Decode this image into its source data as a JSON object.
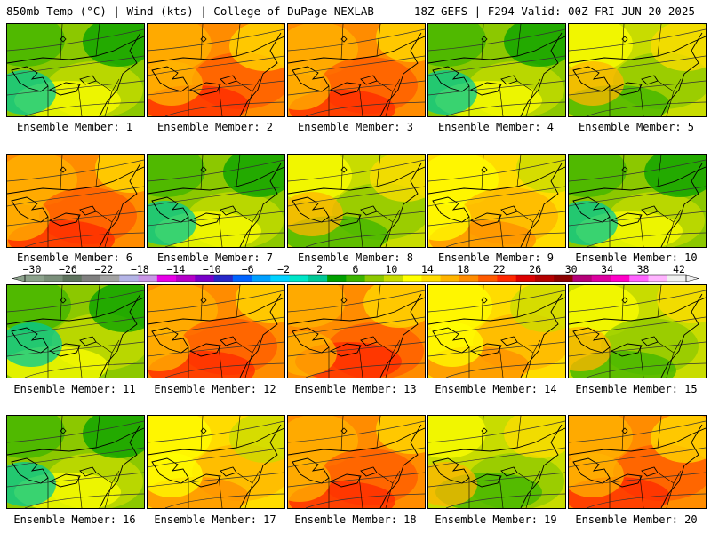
{
  "header": {
    "left": "850mb Temp (°C) | Wind (kts) | College of DuPage NEXLAB",
    "right": "18Z GEFS | F294 Valid: 00Z FRI JUN 20 2025"
  },
  "caption_prefix": "Ensemble Member: ",
  "members": [
    {
      "label": "Ensemble Member: 1",
      "scheme": "cool"
    },
    {
      "label": "Ensemble Member: 2",
      "scheme": "hot"
    },
    {
      "label": "Ensemble Member: 3",
      "scheme": "hot"
    },
    {
      "label": "Ensemble Member: 4",
      "scheme": "cool"
    },
    {
      "label": "Ensemble Member: 5",
      "scheme": "mild"
    },
    {
      "label": "Ensemble Member: 6",
      "scheme": "hot"
    },
    {
      "label": "Ensemble Member: 7",
      "scheme": "cool"
    },
    {
      "label": "Ensemble Member: 8",
      "scheme": "mild"
    },
    {
      "label": "Ensemble Member: 9",
      "scheme": "warm"
    },
    {
      "label": "Ensemble Member: 10",
      "scheme": "cool"
    },
    {
      "label": "Ensemble Member: 11",
      "scheme": "cool"
    },
    {
      "label": "Ensemble Member: 12",
      "scheme": "hot"
    },
    {
      "label": "Ensemble Member: 13",
      "scheme": "hot"
    },
    {
      "label": "Ensemble Member: 14",
      "scheme": "warm"
    },
    {
      "label": "Ensemble Member: 15",
      "scheme": "mild"
    },
    {
      "label": "Ensemble Member: 16",
      "scheme": "cool"
    },
    {
      "label": "Ensemble Member: 17",
      "scheme": "warm"
    },
    {
      "label": "Ensemble Member: 18",
      "scheme": "hot"
    },
    {
      "label": "Ensemble Member: 19",
      "scheme": "mild"
    },
    {
      "label": "Ensemble Member: 20",
      "scheme": "hot"
    }
  ],
  "colorbar": {
    "tick_labels": [
      "−30",
      "−26",
      "−22",
      "−18",
      "−14",
      "−10",
      "−6",
      "−2",
      "2",
      "6",
      "10",
      "14",
      "18",
      "22",
      "26",
      "30",
      "34",
      "38",
      "42"
    ],
    "colors": [
      "#8ca28c",
      "#7a8f7a",
      "#5e735e",
      "#7f7f7f",
      "#a3a3a3",
      "#b4b4e6",
      "#c896e6",
      "#e600e6",
      "#b400c8",
      "#7800c8",
      "#2828c8",
      "#0064ff",
      "#00a0ff",
      "#00d2ff",
      "#00e6c8",
      "#00c896",
      "#00a000",
      "#3cb400",
      "#8cc800",
      "#c8dc00",
      "#ffff00",
      "#ffdc00",
      "#ffb400",
      "#ff8c00",
      "#ff5a00",
      "#ff2800",
      "#dc0000",
      "#b40000",
      "#8c0000",
      "#b40078",
      "#dc00a0",
      "#ff00c8",
      "#ff64ff",
      "#ffb4ff",
      "#f0f0f0"
    ]
  },
  "schemes": {
    "hot": {
      "base": "#ff8c00",
      "blobs": [
        "#ffb400",
        "#ff5a00",
        "#ffdc00",
        "#ff2800",
        "#ffb400"
      ]
    },
    "warm": {
      "base": "#ffdc00",
      "blobs": [
        "#ffff00",
        "#ffb400",
        "#c8dc00",
        "#ff8c00",
        "#ffff00"
      ]
    },
    "mild": {
      "base": "#c8dc00",
      "blobs": [
        "#ffff00",
        "#8cc800",
        "#ffdc00",
        "#3cb400",
        "#ffb400"
      ]
    },
    "cool": {
      "base": "#8cc800",
      "blobs": [
        "#3cb400",
        "#c8dc00",
        "#00a000",
        "#ffff00",
        "#00c896"
      ]
    }
  }
}
